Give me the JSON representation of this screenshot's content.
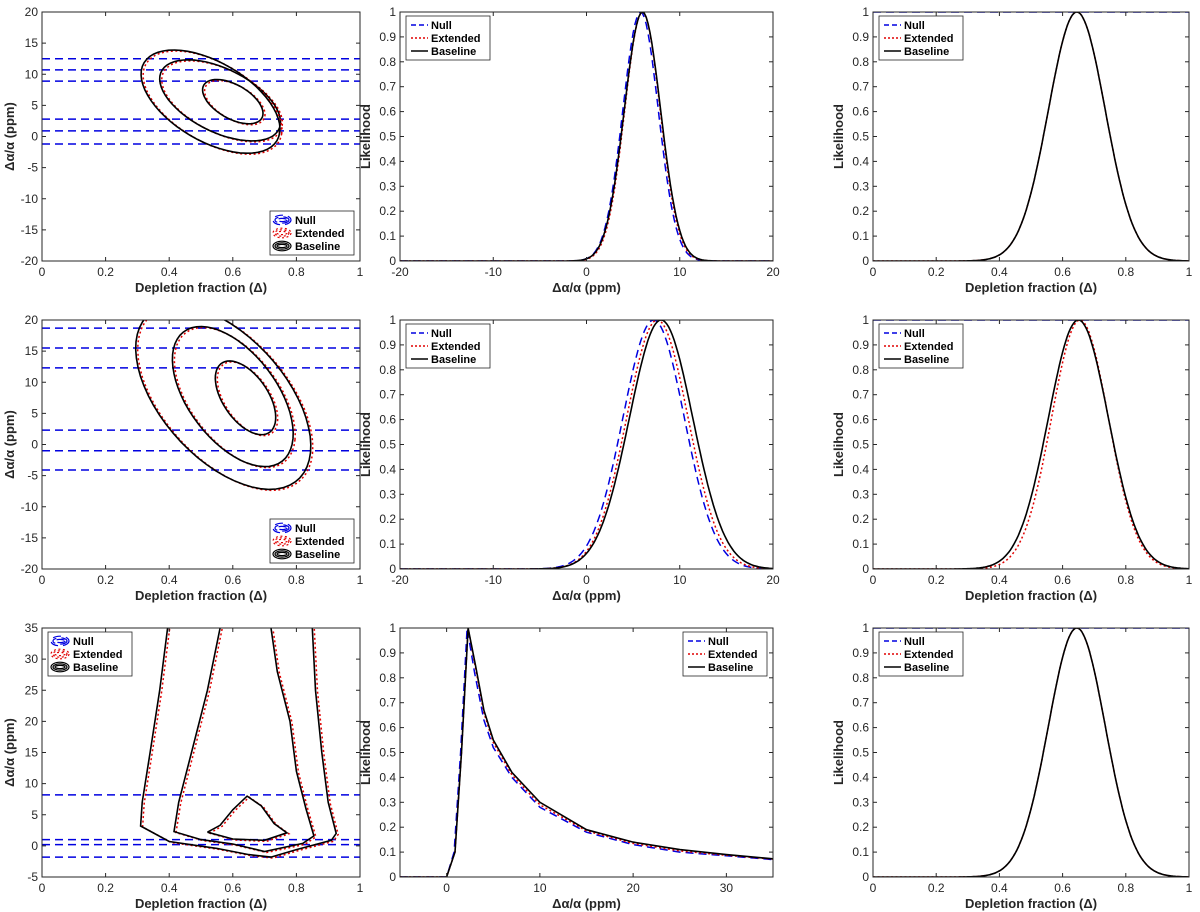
{
  "figure": {
    "rows": 3,
    "cols": 3
  },
  "legend_labels": {
    "null": "Null",
    "extended": "Extended",
    "baseline": "Baseline"
  },
  "colors": {
    "null": "#0000e0",
    "extended": "#e00000",
    "baseline": "#000000",
    "axis": "#262626"
  },
  "chart_data": [
    {
      "panel": "r1c1",
      "type": "contour",
      "xlabel": "Depletion fraction (Δ)",
      "ylabel": "Δα/α (ppm)",
      "xlim": [
        0,
        1
      ],
      "ylim": [
        -20,
        20
      ],
      "xticks": [
        0,
        0.2,
        0.4,
        0.6,
        0.8,
        1
      ],
      "xtick_labels": [
        "0",
        "0.2",
        "0.4",
        "0.6",
        "0.8",
        "1"
      ],
      "yticks": [
        -20,
        -15,
        -10,
        -5,
        0,
        5,
        10,
        15,
        20
      ],
      "ytick_labels": [
        "-20",
        "-15",
        "-10",
        "-5",
        "0",
        "5",
        "10",
        "15",
        "20"
      ],
      "legend": "bottom-right",
      "null_lines": [
        12.5,
        10.7,
        8.9,
        2.8,
        0.9,
        -1.2
      ],
      "contours": [
        {
          "series": "baseline",
          "center": [
            0.6,
            5.6
          ],
          "rx": 0.1,
          "ry": 3.0
        },
        {
          "series": "baseline",
          "center": [
            0.56,
            5.8
          ],
          "rx": 0.2,
          "ry": 5.5
        },
        {
          "series": "baseline",
          "center": [
            0.53,
            5.6
          ],
          "rx": 0.23,
          "ry": 7.0
        }
      ]
    },
    {
      "panel": "r1c2",
      "type": "line",
      "xlabel": "Δα/α (ppm)",
      "ylabel": "Likelihood",
      "xlim": [
        -20,
        20
      ],
      "ylim": [
        0,
        1
      ],
      "xticks": [
        -20,
        -10,
        0,
        10,
        20
      ],
      "xtick_labels": [
        "-20",
        "-10",
        "0",
        "10",
        "20"
      ],
      "yticks": [
        0,
        0.1,
        0.2,
        0.3,
        0.4,
        0.5,
        0.6,
        0.7,
        0.8,
        0.9,
        1
      ],
      "ytick_labels": [
        "0",
        "0.1",
        "0.2",
        "0.3",
        "0.4",
        "0.5",
        "0.6",
        "0.7",
        "0.8",
        "0.9",
        "1"
      ],
      "legend": "top-left",
      "series": [
        {
          "name": "null",
          "peak": 5.8,
          "sigma": 1.9
        },
        {
          "name": "extended",
          "peak": 6.0,
          "sigma": 1.9
        },
        {
          "name": "baseline",
          "peak": 6.0,
          "sigma": 1.95
        }
      ]
    },
    {
      "panel": "r1c3",
      "type": "line",
      "xlabel": "Depletion fraction (Δ)",
      "ylabel": "Likelihood",
      "xlim": [
        0,
        1
      ],
      "ylim": [
        0,
        1
      ],
      "xticks": [
        0,
        0.2,
        0.4,
        0.6,
        0.8,
        1
      ],
      "xtick_labels": [
        "0",
        "0.2",
        "0.4",
        "0.6",
        "0.8",
        "1"
      ],
      "yticks": [
        0,
        0.1,
        0.2,
        0.3,
        0.4,
        0.5,
        0.6,
        0.7,
        0.8,
        0.9,
        1
      ],
      "ytick_labels": [
        "0",
        "0.1",
        "0.2",
        "0.3",
        "0.4",
        "0.5",
        "0.6",
        "0.7",
        "0.8",
        "0.9",
        "1"
      ],
      "legend": "top-left",
      "null_flat": 1,
      "series": [
        {
          "name": "extended",
          "peak": 0.645,
          "sigma": 0.09
        },
        {
          "name": "baseline",
          "peak": 0.645,
          "sigma": 0.09
        }
      ]
    },
    {
      "panel": "r2c1",
      "type": "contour",
      "xlabel": "Depletion fraction (Δ)",
      "ylabel": "Δα/α (ppm)",
      "xlim": [
        0,
        1
      ],
      "ylim": [
        -20,
        20
      ],
      "xticks": [
        0,
        0.2,
        0.4,
        0.6,
        0.8,
        1
      ],
      "xtick_labels": [
        "0",
        "0.2",
        "0.4",
        "0.6",
        "0.8",
        "1"
      ],
      "yticks": [
        -20,
        -15,
        -10,
        -5,
        0,
        5,
        10,
        15,
        20
      ],
      "ytick_labels": [
        "-20",
        "-15",
        "-10",
        "-5",
        "0",
        "5",
        "10",
        "15",
        "20"
      ],
      "legend": "bottom-right",
      "null_lines": [
        18.7,
        15.5,
        12.3,
        2.3,
        -1.0,
        -4.1
      ],
      "contours": [
        {
          "series": "baseline",
          "center": [
            0.64,
            7.5
          ],
          "rx": 0.1,
          "ry": 5.0
        },
        {
          "series": "baseline",
          "center": [
            0.6,
            7.7
          ],
          "rx": 0.2,
          "ry": 9.5
        },
        {
          "series": "baseline",
          "center": [
            0.57,
            7.6
          ],
          "rx": 0.29,
          "ry": 12.5
        }
      ]
    },
    {
      "panel": "r2c2",
      "type": "line",
      "xlabel": "Δα/α (ppm)",
      "ylabel": "Likelihood",
      "xlim": [
        -20,
        20
      ],
      "ylim": [
        0,
        1
      ],
      "xticks": [
        -20,
        -10,
        0,
        10,
        20
      ],
      "xtick_labels": [
        "-20",
        "-10",
        "0",
        "10",
        "20"
      ],
      "yticks": [
        0,
        0.1,
        0.2,
        0.3,
        0.4,
        0.5,
        0.6,
        0.7,
        0.8,
        0.9,
        1
      ],
      "ytick_labels": [
        "0",
        "0.1",
        "0.2",
        "0.3",
        "0.4",
        "0.5",
        "0.6",
        "0.7",
        "0.8",
        "0.9",
        "1"
      ],
      "legend": "top-left",
      "series": [
        {
          "name": "null",
          "peak": 7.2,
          "sigma": 3.3
        },
        {
          "name": "extended",
          "peak": 7.6,
          "sigma": 3.3
        },
        {
          "name": "baseline",
          "peak": 8.0,
          "sigma": 3.4
        }
      ]
    },
    {
      "panel": "r2c3",
      "type": "line",
      "xlabel": "Depletion fraction (Δ)",
      "ylabel": "Likelihood",
      "xlim": [
        0,
        1
      ],
      "ylim": [
        0,
        1
      ],
      "xticks": [
        0,
        0.2,
        0.4,
        0.6,
        0.8,
        1
      ],
      "xtick_labels": [
        "0",
        "0.2",
        "0.4",
        "0.6",
        "0.8",
        "1"
      ],
      "yticks": [
        0,
        0.1,
        0.2,
        0.3,
        0.4,
        0.5,
        0.6,
        0.7,
        0.8,
        0.9,
        1
      ],
      "ytick_labels": [
        "0",
        "0.1",
        "0.2",
        "0.3",
        "0.4",
        "0.5",
        "0.6",
        "0.7",
        "0.8",
        "0.9",
        "1"
      ],
      "legend": "top-left",
      "null_flat": 1,
      "series": [
        {
          "name": "extended",
          "peak": 0.655,
          "sigma": 0.09
        },
        {
          "name": "baseline",
          "peak": 0.65,
          "sigma": 0.095
        }
      ]
    },
    {
      "panel": "r3c1",
      "type": "contour",
      "xlabel": "Depletion fraction (Δ)",
      "ylabel": "Δα/α (ppm)",
      "xlim": [
        0,
        1
      ],
      "ylim": [
        -5,
        35
      ],
      "xticks": [
        0,
        0.2,
        0.4,
        0.6,
        0.8,
        1
      ],
      "xtick_labels": [
        "0",
        "0.2",
        "0.4",
        "0.6",
        "0.8",
        "1"
      ],
      "yticks": [
        -5,
        0,
        5,
        10,
        15,
        20,
        25,
        30,
        35
      ],
      "ytick_labels": [
        "-5",
        "0",
        "5",
        "10",
        "15",
        "20",
        "25",
        "30",
        "35"
      ],
      "legend": "top-left",
      "null_lines": [
        8.2,
        1.0,
        0.2,
        -1.8
      ],
      "contours": [
        {
          "series": "baseline",
          "points": [
            [
              0.52,
              2.2
            ],
            [
              0.56,
              3.3
            ],
            [
              0.6,
              5.8
            ],
            [
              0.645,
              8.0
            ],
            [
              0.69,
              6.4
            ],
            [
              0.73,
              3.6
            ],
            [
              0.77,
              2.1
            ],
            [
              0.7,
              0.9
            ],
            [
              0.6,
              1.1
            ],
            [
              0.52,
              2.2
            ]
          ]
        },
        {
          "series": "baseline",
          "points": [
            [
              0.56,
              35
            ],
            [
              0.52,
              25
            ],
            [
              0.47,
              15
            ],
            [
              0.43,
              7
            ],
            [
              0.415,
              2.3
            ],
            [
              0.5,
              1.0
            ],
            [
              0.6,
              0.3
            ],
            [
              0.7,
              -0.9
            ],
            [
              0.82,
              0.4
            ],
            [
              0.855,
              1.6
            ],
            [
              0.83,
              6
            ],
            [
              0.8,
              12
            ],
            [
              0.78,
              20
            ],
            [
              0.74,
              28
            ],
            [
              0.72,
              35
            ]
          ]
        },
        {
          "series": "baseline",
          "points": [
            [
              0.395,
              35
            ],
            [
              0.37,
              25
            ],
            [
              0.34,
              15
            ],
            [
              0.315,
              7
            ],
            [
              0.31,
              3.2
            ],
            [
              0.4,
              0.7
            ],
            [
              0.55,
              -0.4
            ],
            [
              0.65,
              -1.4
            ],
            [
              0.72,
              -1.8
            ],
            [
              0.8,
              -0.6
            ],
            [
              0.91,
              0.9
            ],
            [
              0.925,
              2.0
            ],
            [
              0.9,
              7
            ],
            [
              0.88,
              15
            ],
            [
              0.86,
              25
            ],
            [
              0.85,
              35
            ]
          ]
        }
      ]
    },
    {
      "panel": "r3c2",
      "type": "line",
      "xlabel": "Δα/α (ppm)",
      "ylabel": "Likelihood",
      "xlim": [
        -5,
        35
      ],
      "ylim": [
        0,
        1
      ],
      "xticks": [
        0,
        10,
        20,
        30
      ],
      "xtick_labels": [
        "0",
        "10",
        "20",
        "30"
      ],
      "yticks": [
        0,
        0.1,
        0.2,
        0.3,
        0.4,
        0.5,
        0.6,
        0.7,
        0.8,
        0.9,
        1
      ],
      "ytick_labels": [
        "0",
        "0.1",
        "0.2",
        "0.3",
        "0.4",
        "0.5",
        "0.6",
        "0.7",
        "0.8",
        "0.9",
        "1"
      ],
      "legend": "top-right",
      "series": [
        {
          "name": "null",
          "points": [
            [
              -5,
              0
            ],
            [
              0,
              0
            ],
            [
              0.8,
              0.1
            ],
            [
              1.5,
              0.5
            ],
            [
              2.2,
              1.0
            ],
            [
              3,
              0.82
            ],
            [
              4,
              0.63
            ],
            [
              5,
              0.52
            ],
            [
              7,
              0.4
            ],
            [
              10,
              0.28
            ],
            [
              15,
              0.18
            ],
            [
              20,
              0.13
            ],
            [
              25,
              0.1
            ],
            [
              30,
              0.085
            ],
            [
              35,
              0.07
            ]
          ]
        },
        {
          "name": "extended",
          "points": [
            [
              -5,
              0
            ],
            [
              0,
              0
            ],
            [
              0.9,
              0.1
            ],
            [
              1.6,
              0.5
            ],
            [
              2.3,
              1.0
            ],
            [
              3.1,
              0.84
            ],
            [
              4,
              0.66
            ],
            [
              5,
              0.54
            ],
            [
              7,
              0.41
            ],
            [
              10,
              0.29
            ],
            [
              15,
              0.185
            ],
            [
              20,
              0.135
            ],
            [
              25,
              0.105
            ],
            [
              30,
              0.087
            ],
            [
              35,
              0.072
            ]
          ]
        },
        {
          "name": "baseline",
          "points": [
            [
              -5,
              0
            ],
            [
              0,
              0
            ],
            [
              0.9,
              0.1
            ],
            [
              1.6,
              0.5
            ],
            [
              2.3,
              1.0
            ],
            [
              3.1,
              0.85
            ],
            [
              4,
              0.67
            ],
            [
              5,
              0.55
            ],
            [
              7,
              0.42
            ],
            [
              10,
              0.3
            ],
            [
              15,
              0.19
            ],
            [
              20,
              0.14
            ],
            [
              25,
              0.11
            ],
            [
              30,
              0.09
            ],
            [
              35,
              0.073
            ]
          ]
        }
      ]
    },
    {
      "panel": "r3c3",
      "type": "line",
      "xlabel": "Depletion fraction (Δ)",
      "ylabel": "Likelihood",
      "xlim": [
        0,
        1
      ],
      "ylim": [
        0,
        1
      ],
      "xticks": [
        0,
        0.2,
        0.4,
        0.6,
        0.8,
        1
      ],
      "xtick_labels": [
        "0",
        "0.2",
        "0.4",
        "0.6",
        "0.8",
        "1"
      ],
      "yticks": [
        0,
        0.1,
        0.2,
        0.3,
        0.4,
        0.5,
        0.6,
        0.7,
        0.8,
        0.9,
        1
      ],
      "ytick_labels": [
        "0",
        "0.1",
        "0.2",
        "0.3",
        "0.4",
        "0.5",
        "0.6",
        "0.7",
        "0.8",
        "0.9",
        "1"
      ],
      "legend": "top-left",
      "null_flat": 1,
      "series": [
        {
          "name": "extended",
          "peak": 0.645,
          "sigma": 0.09
        },
        {
          "name": "baseline",
          "peak": 0.645,
          "sigma": 0.09
        }
      ]
    }
  ]
}
